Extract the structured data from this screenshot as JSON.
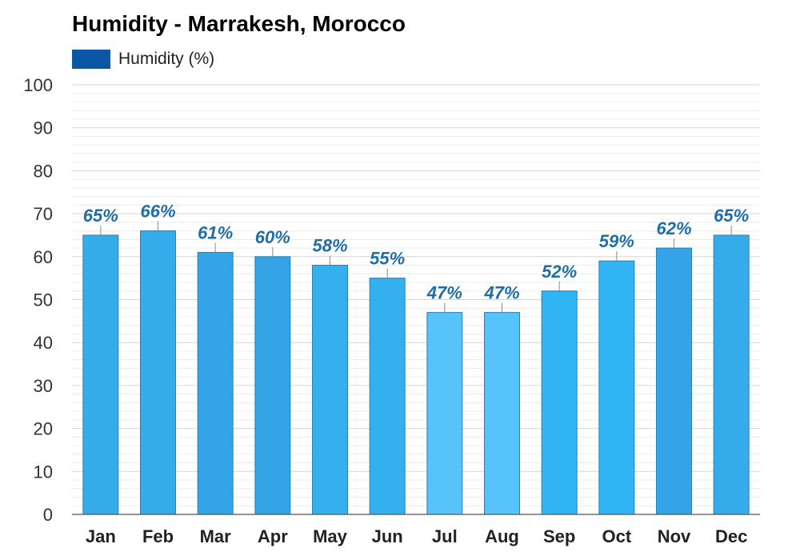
{
  "chart_data": {
    "type": "bar",
    "title": "Humidity - Marrakesh, Morocco",
    "legend": [
      {
        "name": "Humidity (%)",
        "color": "#0b57a5"
      }
    ],
    "legend_position": "top-left",
    "categories": [
      "Jan",
      "Feb",
      "Mar",
      "Apr",
      "May",
      "Jun",
      "Jul",
      "Aug",
      "Sep",
      "Oct",
      "Nov",
      "Dec"
    ],
    "series": [
      {
        "name": "Humidity (%)",
        "values": [
          65,
          66,
          61,
          60,
          58,
          55,
          47,
          47,
          52,
          59,
          62,
          65
        ]
      }
    ],
    "data_labels": [
      "65%",
      "66%",
      "61%",
      "60%",
      "58%",
      "55%",
      "47%",
      "47%",
      "52%",
      "59%",
      "62%",
      "65%"
    ],
    "bar_colors": [
      "#36abe9",
      "#36abe9",
      "#33a4e5",
      "#33a4e5",
      "#34b0ef",
      "#34b0ef",
      "#56c3fb",
      "#56c3fb",
      "#31b4f4",
      "#31b4f4",
      "#33a4e5",
      "#36abe9"
    ],
    "label_color": "#1f6ea8",
    "ylim": [
      0,
      100
    ],
    "yticks": [
      0,
      10,
      20,
      30,
      40,
      50,
      60,
      70,
      80,
      90,
      100
    ],
    "grid": true,
    "xlabel": "",
    "ylabel": ""
  }
}
